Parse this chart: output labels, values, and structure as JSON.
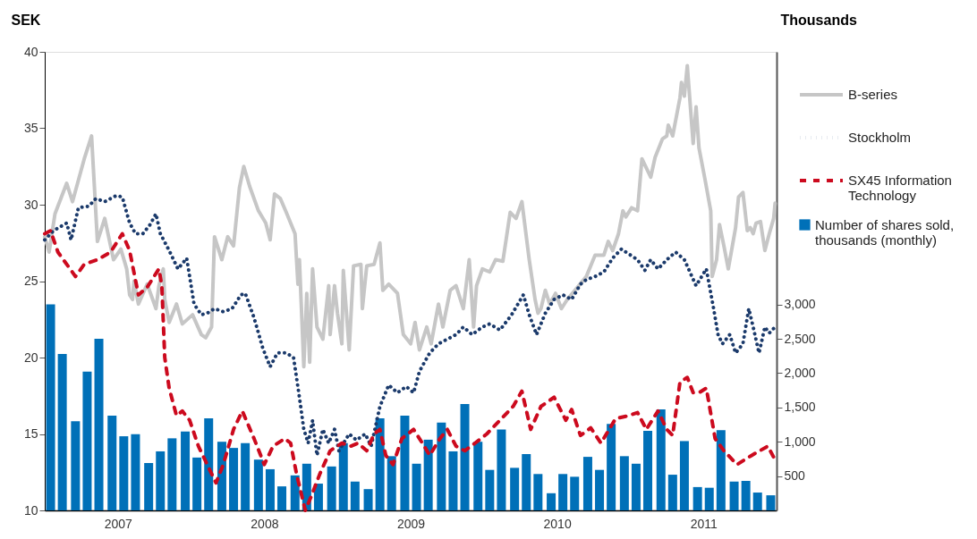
{
  "chart_data": {
    "type": "line",
    "ylabel": "SEK",
    "y2label": "Thousands",
    "xlim": [
      2007,
      2012
    ],
    "xticks": [
      {
        "value": 2007.5,
        "label": "2007"
      },
      {
        "value": 2008.5,
        "label": "2008"
      },
      {
        "value": 2009.5,
        "label": "2009"
      },
      {
        "value": 2010.5,
        "label": "2010"
      },
      {
        "value": 2011.5,
        "label": "2011"
      }
    ],
    "ylim": [
      10,
      40
    ],
    "yticks": [
      10,
      15,
      20,
      25,
      30,
      35,
      40
    ],
    "y2lim": [
      0,
      6680
    ],
    "y2ticks": [
      500,
      {
        "value": 1000,
        "label": "1,000"
      },
      {
        "value": 1500,
        "label": "1,500"
      },
      {
        "value": 2000,
        "label": "2,000"
      },
      {
        "value": 2500,
        "label": "2,500"
      },
      {
        "value": 3000,
        "label": "3,000"
      }
    ],
    "grid": false,
    "legend": "right",
    "series": [
      {
        "name": "Number of shares sold, thousands (monthly)",
        "type": "bar",
        "axis": "y2",
        "color": "#0070b8",
        "x": [
          2007.04,
          2007.12,
          2007.21,
          2007.29,
          2007.37,
          2007.46,
          2007.54,
          2007.62,
          2007.71,
          2007.79,
          2007.87,
          2007.96,
          2008.04,
          2008.12,
          2008.21,
          2008.29,
          2008.37,
          2008.46,
          2008.54,
          2008.62,
          2008.71,
          2008.79,
          2008.87,
          2008.96,
          2009.04,
          2009.12,
          2009.21,
          2009.29,
          2009.37,
          2009.46,
          2009.54,
          2009.62,
          2009.71,
          2009.79,
          2009.87,
          2009.96,
          2010.04,
          2010.12,
          2010.21,
          2010.29,
          2010.37,
          2010.46,
          2010.54,
          2010.62,
          2010.71,
          2010.79,
          2010.87,
          2010.96,
          2011.04,
          2011.12,
          2011.21,
          2011.29,
          2011.37,
          2011.46,
          2011.54,
          2011.62,
          2011.71,
          2011.79,
          2011.87,
          2011.96
        ],
        "values": [
          3000,
          2280,
          1300,
          2020,
          2500,
          1380,
          1080,
          1110,
          690,
          860,
          1050,
          1150,
          770,
          1340,
          1000,
          910,
          980,
          740,
          600,
          350,
          510,
          680,
          390,
          640,
          980,
          420,
          310,
          1340,
          790,
          1380,
          680,
          1030,
          1280,
          860,
          1550,
          1000,
          590,
          1180,
          620,
          820,
          530,
          250,
          530,
          490,
          780,
          590,
          1260,
          790,
          680,
          1160,
          1470,
          520,
          1010,
          340,
          330,
          1170,
          420,
          430,
          260,
          220
        ]
      },
      {
        "name": "B-series",
        "line_style": "solid",
        "color": "#c6c6c6",
        "x": [
          2007.0,
          2007.03,
          2007.07,
          2007.15,
          2007.19,
          2007.27,
          2007.32,
          2007.36,
          2007.41,
          2007.47,
          2007.52,
          2007.56,
          2007.58,
          2007.6,
          2007.61,
          2007.64,
          2007.7,
          2007.76,
          2007.78,
          2007.81,
          2007.82,
          2007.85,
          2007.9,
          2007.94,
          2008.01,
          2008.07,
          2008.1,
          2008.14,
          2008.16,
          2008.21,
          2008.25,
          2008.29,
          2008.33,
          2008.36,
          2008.4,
          2008.46,
          2008.51,
          2008.54,
          2008.57,
          2008.61,
          2008.65,
          2008.71,
          2008.73,
          2008.74,
          2008.77,
          2008.79,
          2008.81,
          2008.83,
          2008.86,
          2008.9,
          2008.94,
          2008.95,
          2008.98,
          2009.0,
          2009.03,
          2009.04,
          2009.08,
          2009.11,
          2009.16,
          2009.17,
          2009.2,
          2009.25,
          2009.29,
          2009.31,
          2009.35,
          2009.41,
          2009.45,
          2009.5,
          2009.53,
          2009.56,
          2009.61,
          2009.64,
          2009.69,
          2009.72,
          2009.77,
          2009.81,
          2009.86,
          2009.9,
          2009.93,
          2009.95,
          2009.99,
          2010.04,
          2010.08,
          2010.13,
          2010.18,
          2010.22,
          2010.26,
          2010.31,
          2010.35,
          2010.37,
          2010.39,
          2010.42,
          2010.45,
          2010.49,
          2010.53,
          2010.57,
          2010.64,
          2010.7,
          2010.76,
          2010.82,
          2010.85,
          2010.88,
          2010.92,
          2010.95,
          2010.97,
          2011.01,
          2011.05,
          2011.08,
          2011.11,
          2011.14,
          2011.17,
          2011.22,
          2011.25,
          2011.26,
          2011.29,
          2011.34,
          2011.35,
          2011.37,
          2011.39,
          2011.4,
          2011.43,
          2011.45,
          2011.47,
          2011.51,
          2011.55,
          2011.56,
          2011.59,
          2011.61,
          2011.64,
          2011.67,
          2011.72,
          2011.74,
          2011.77,
          2011.8,
          2011.82,
          2011.84,
          2011.86,
          2011.89,
          2011.92,
          2011.95,
          2011.98,
          2011.99
        ],
        "values": [
          27.9,
          26.9,
          29.4,
          31.4,
          30.2,
          33.0,
          34.5,
          27.6,
          29.1,
          26.4,
          27.1,
          25.8,
          24.1,
          23.8,
          25.0,
          23.5,
          24.8,
          23.2,
          24.7,
          25.8,
          23.8,
          22.3,
          23.5,
          22.2,
          22.8,
          21.5,
          21.3,
          22.0,
          27.9,
          26.4,
          27.9,
          27.3,
          31.1,
          32.5,
          31.2,
          29.6,
          28.8,
          27.7,
          30.7,
          30.4,
          29.5,
          28.1,
          24.8,
          26.4,
          19.4,
          24.2,
          19.7,
          25.8,
          22.0,
          21.2,
          24.7,
          21.5,
          24.7,
          22.9,
          20.9,
          25.7,
          20.5,
          26.0,
          26.1,
          23.2,
          26.0,
          26.1,
          27.5,
          24.4,
          24.8,
          24.2,
          21.5,
          20.9,
          22.3,
          20.5,
          22.0,
          20.9,
          23.5,
          22.0,
          24.4,
          24.7,
          23.2,
          26.4,
          22.0,
          24.7,
          25.8,
          25.6,
          26.4,
          26.3,
          29.5,
          29.1,
          30.2,
          26.4,
          23.8,
          22.9,
          23.2,
          24.4,
          23.5,
          24.2,
          23.2,
          23.8,
          24.6,
          25.3,
          26.7,
          26.7,
          27.6,
          27.0,
          28.1,
          29.6,
          29.2,
          29.8,
          29.6,
          33.0,
          32.4,
          31.8,
          33.1,
          34.3,
          34.5,
          35.2,
          34.5,
          37.0,
          38.0,
          37.1,
          39.1,
          37.8,
          34.0,
          36.4,
          33.7,
          31.7,
          29.6,
          25.3,
          26.4,
          28.7,
          27.3,
          25.8,
          28.5,
          30.5,
          30.8,
          28.3,
          28.5,
          28.1,
          28.8,
          28.9,
          27.0,
          28.1,
          29.1,
          30.1
        ]
      },
      {
        "name": "Stockholm",
        "line_style": "dotted",
        "color": "#1b3a6b",
        "x": [
          2007.0,
          2007.06,
          2007.15,
          2007.18,
          2007.23,
          2007.3,
          2007.35,
          2007.41,
          2007.49,
          2007.53,
          2007.58,
          2007.62,
          2007.67,
          2007.72,
          2007.76,
          2007.79,
          2007.85,
          2007.91,
          2007.97,
          2008.02,
          2008.07,
          2008.11,
          2008.16,
          2008.22,
          2008.28,
          2008.34,
          2008.37,
          2008.43,
          2008.49,
          2008.54,
          2008.59,
          2008.65,
          2008.7,
          2008.74,
          2008.77,
          2008.8,
          2008.83,
          2008.86,
          2008.9,
          2008.94,
          2008.98,
          2009.01,
          2009.08,
          2009.13,
          2009.19,
          2009.23,
          2009.29,
          2009.35,
          2009.41,
          2009.47,
          2009.52,
          2009.56,
          2009.63,
          2009.69,
          2009.75,
          2009.81,
          2009.86,
          2009.92,
          2009.99,
          2010.04,
          2010.11,
          2010.19,
          2010.27,
          2010.31,
          2010.36,
          2010.42,
          2010.48,
          2010.54,
          2010.6,
          2010.66,
          2010.7,
          2010.76,
          2010.82,
          2010.88,
          2010.94,
          2010.97,
          2011.05,
          2011.1,
          2011.14,
          2011.19,
          2011.25,
          2011.31,
          2011.37,
          2011.45,
          2011.52,
          2011.57,
          2011.6,
          2011.63,
          2011.68,
          2011.72,
          2011.77,
          2011.81,
          2011.84,
          2011.88,
          2011.92,
          2011.95,
          2011.99
        ],
        "values": [
          27.7,
          28.3,
          28.8,
          27.7,
          29.8,
          29.9,
          30.4,
          30.2,
          30.6,
          30.5,
          28.8,
          28.1,
          28.1,
          28.7,
          29.4,
          28.1,
          27.0,
          25.8,
          26.5,
          23.5,
          22.8,
          22.9,
          23.2,
          23.0,
          23.2,
          24.1,
          24.2,
          22.6,
          20.6,
          19.4,
          20.3,
          20.3,
          20.0,
          17.4,
          15.3,
          14.4,
          15.9,
          13.6,
          15.3,
          14.4,
          15.3,
          13.9,
          15.0,
          14.6,
          15.0,
          14.2,
          16.8,
          18.2,
          17.7,
          18.1,
          17.7,
          19.1,
          20.3,
          20.9,
          21.2,
          21.5,
          22.0,
          21.5,
          22.0,
          22.2,
          21.8,
          22.8,
          24.1,
          22.8,
          21.5,
          22.9,
          23.8,
          24.1,
          23.8,
          24.8,
          25.1,
          25.3,
          25.6,
          26.5,
          27.1,
          26.9,
          26.4,
          25.7,
          26.4,
          25.8,
          26.4,
          26.9,
          26.4,
          24.7,
          25.8,
          23.2,
          21.5,
          20.9,
          21.5,
          20.3,
          20.9,
          23.2,
          22.0,
          20.3,
          22.0,
          21.6,
          22.0
        ]
      },
      {
        "name": "SX45 Information Technology",
        "line_style": "dashed",
        "color": "#cc0a1e",
        "x": [
          2007.0,
          2007.04,
          2007.09,
          2007.15,
          2007.21,
          2007.27,
          2007.36,
          2007.45,
          2007.53,
          2007.58,
          2007.64,
          2007.7,
          2007.78,
          2007.8,
          2007.82,
          2007.85,
          2007.9,
          2007.94,
          2007.99,
          2008.05,
          2008.11,
          2008.17,
          2008.22,
          2008.29,
          2008.35,
          2008.43,
          2008.5,
          2008.56,
          2008.64,
          2008.68,
          2008.72,
          2008.78,
          2008.82,
          2008.88,
          2008.95,
          2009.03,
          2009.09,
          2009.14,
          2009.2,
          2009.25,
          2009.29,
          2009.33,
          2009.38,
          2009.44,
          2009.52,
          2009.58,
          2009.63,
          2009.7,
          2009.75,
          2009.81,
          2009.87,
          2009.94,
          2010.02,
          2010.11,
          2010.2,
          2010.26,
          2010.32,
          2010.39,
          2010.48,
          2010.56,
          2010.6,
          2010.66,
          2010.73,
          2010.8,
          2010.9,
          2010.99,
          2011.05,
          2011.11,
          2011.19,
          2011.25,
          2011.29,
          2011.34,
          2011.39,
          2011.43,
          2011.47,
          2011.52,
          2011.58,
          2011.64,
          2011.73,
          2011.83,
          2011.94,
          2011.99
        ],
        "values": [
          28.1,
          28.3,
          26.9,
          26.1,
          25.3,
          26.1,
          26.4,
          26.9,
          28.1,
          27.0,
          24.1,
          24.6,
          25.8,
          24.7,
          20.0,
          18.0,
          16.2,
          16.5,
          15.9,
          14.2,
          13.0,
          11.8,
          13.0,
          15.3,
          16.5,
          14.7,
          13.0,
          14.2,
          14.7,
          14.4,
          12.4,
          10.0,
          10.9,
          12.4,
          13.9,
          14.4,
          14.2,
          14.4,
          13.9,
          15.0,
          15.3,
          13.6,
          13.0,
          14.7,
          15.3,
          14.4,
          13.6,
          14.7,
          15.3,
          14.2,
          13.9,
          14.4,
          15.0,
          15.9,
          16.8,
          17.8,
          15.3,
          16.8,
          17.4,
          15.9,
          16.6,
          14.9,
          15.4,
          14.4,
          16.0,
          16.2,
          16.4,
          15.3,
          16.5,
          15.3,
          14.9,
          18.4,
          18.7,
          17.7,
          17.7,
          18.0,
          14.7,
          13.9,
          13.0,
          13.6,
          14.2,
          13.3
        ]
      }
    ]
  }
}
